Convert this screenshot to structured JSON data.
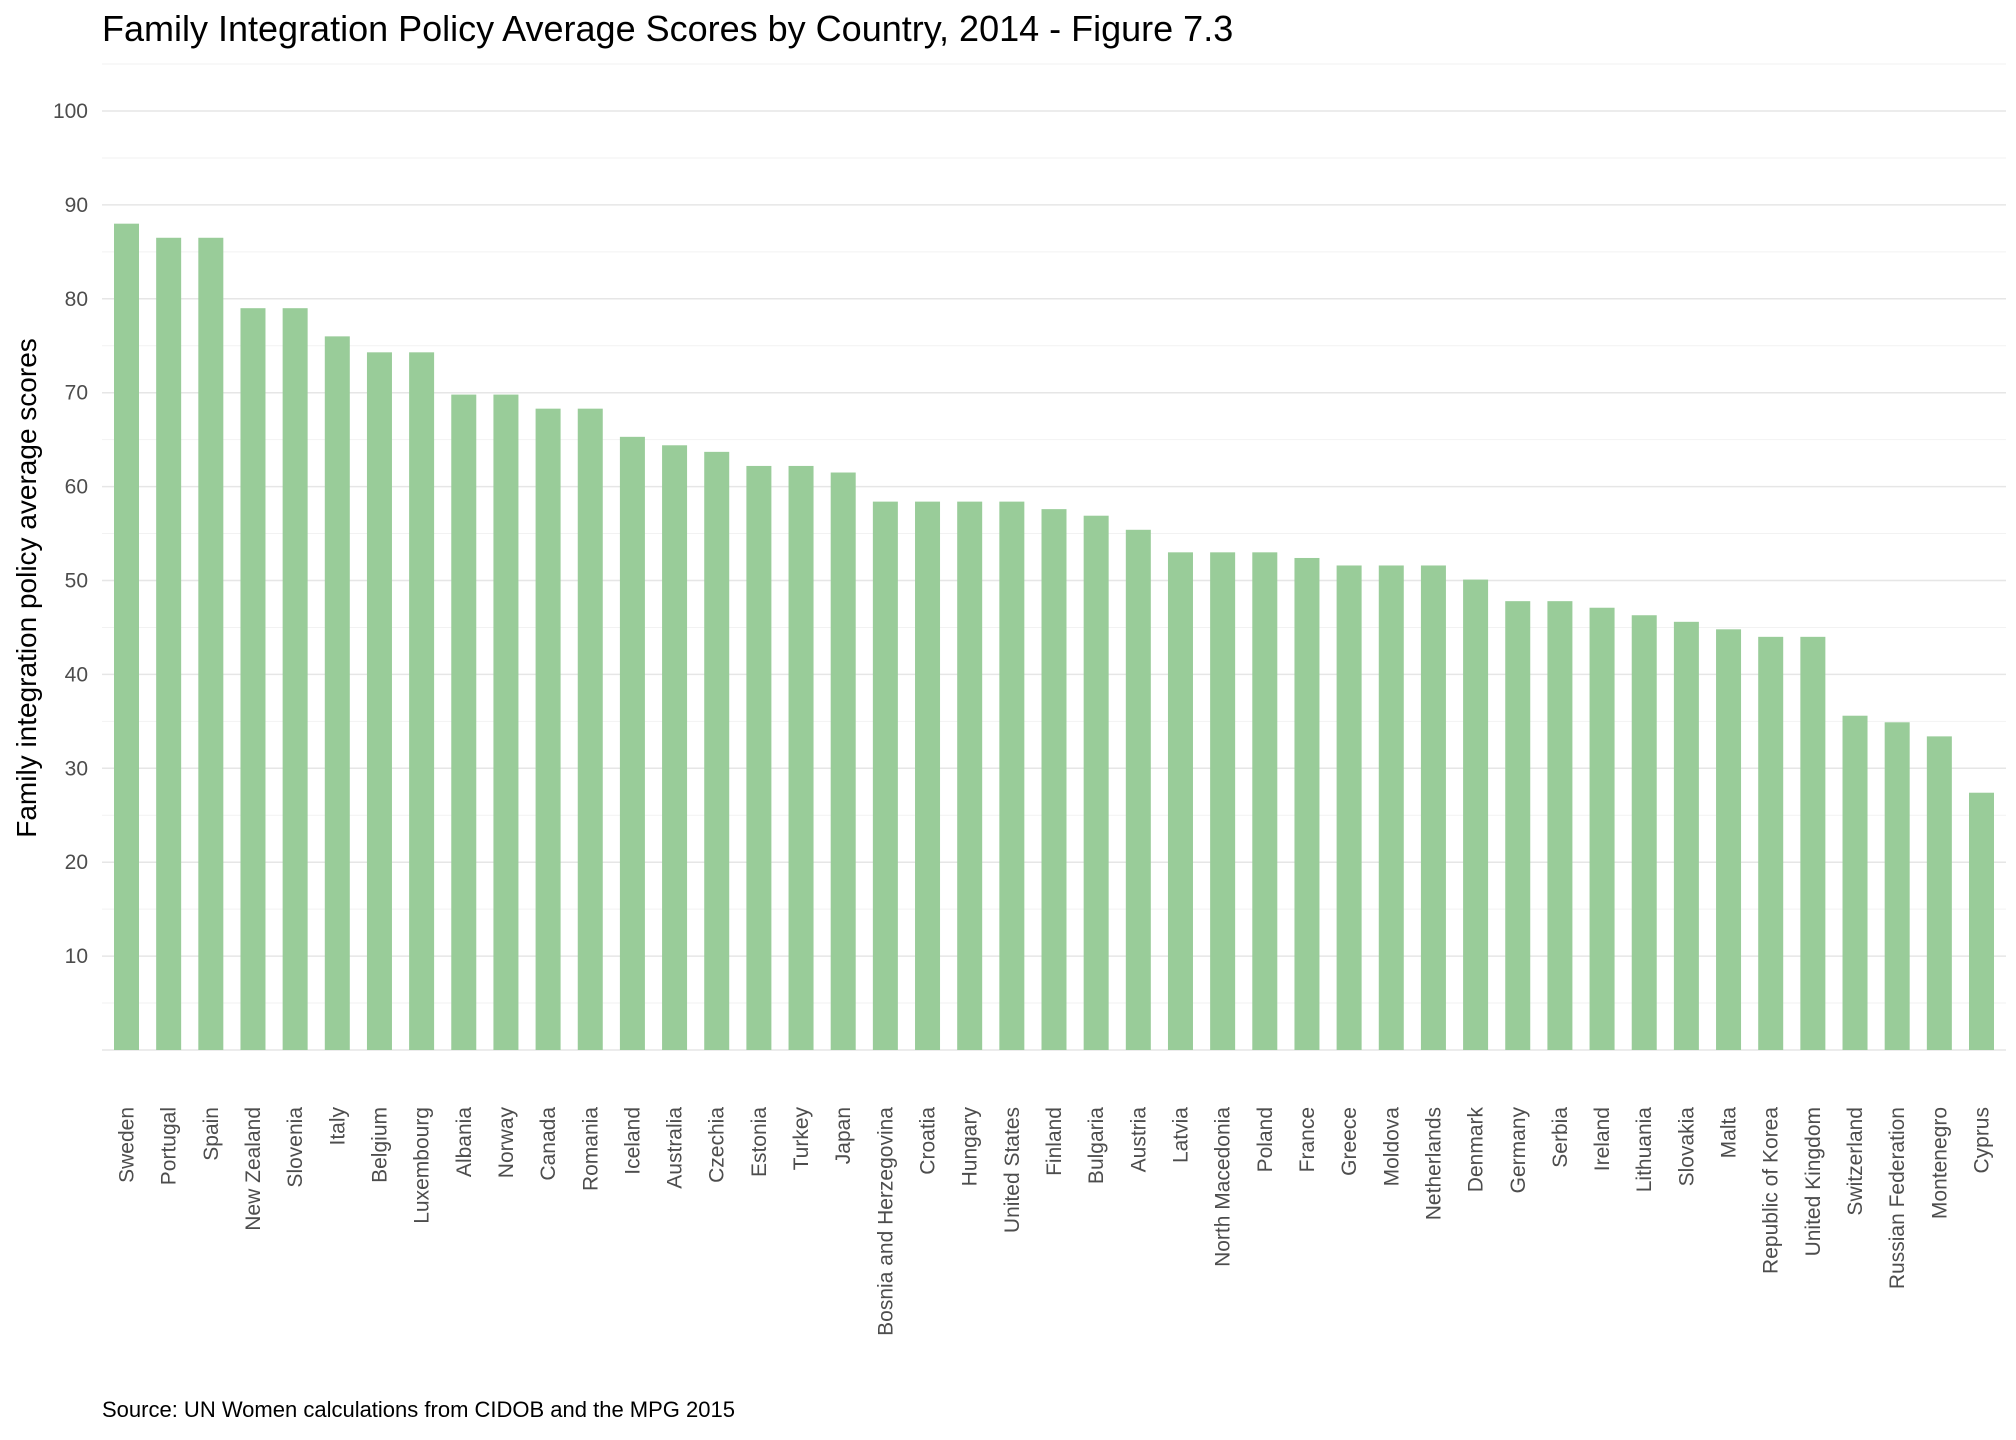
{
  "title": "Family Integration Policy Average Scores by Country, 2014 - Figure 7.3",
  "caption": "Source: UN Women calculations from CIDOB and the MPG 2015",
  "colors": {
    "bar": "#99cc99",
    "grid_major": "#e6e6e6",
    "grid_minor": "#f2f2f2",
    "tick_text": "#4d4d4d"
  },
  "chart_data": {
    "type": "bar",
    "title": "Family Integration Policy Average Scores by Country, 2014 - Figure 7.3",
    "xlabel": "",
    "ylabel": "Family integration policy average scores",
    "ylim": [
      0,
      100
    ],
    "yticks": [
      10,
      20,
      30,
      40,
      50,
      60,
      70,
      80,
      90,
      100
    ],
    "grid": true,
    "legend": "none",
    "categories": [
      "Sweden",
      "Portugal",
      "Spain",
      "New Zealand",
      "Slovenia",
      "Italy",
      "Belgium",
      "Luxembourg",
      "Albania",
      "Norway",
      "Canada",
      "Romania",
      "Iceland",
      "Australia",
      "Czechia",
      "Estonia",
      "Turkey",
      "Japan",
      "Bosnia and Herzegovina",
      "Croatia",
      "Hungary",
      "United States",
      "Finland",
      "Bulgaria",
      "Austria",
      "Latvia",
      "North Macedonia",
      "Poland",
      "France",
      "Greece",
      "Moldova",
      "Netherlands",
      "Denmark",
      "Germany",
      "Serbia",
      "Ireland",
      "Lithuania",
      "Slovakia",
      "Malta",
      "Republic of Korea",
      "United Kingdom",
      "Switzerland",
      "Russian Federation",
      "Montenegro",
      "Cyprus"
    ],
    "values": [
      88,
      86.5,
      86.5,
      79,
      79,
      76,
      74.3,
      74.3,
      69.8,
      69.8,
      68.3,
      68.3,
      65.3,
      64.4,
      63.7,
      62.2,
      62.2,
      61.5,
      58.4,
      58.4,
      58.4,
      58.4,
      57.6,
      56.9,
      55.4,
      53,
      53,
      53,
      52.4,
      51.6,
      51.6,
      51.6,
      50.1,
      47.8,
      47.8,
      47.1,
      46.3,
      45.6,
      44.8,
      44,
      44,
      35.6,
      34.9,
      33.4,
      27.4
    ]
  }
}
